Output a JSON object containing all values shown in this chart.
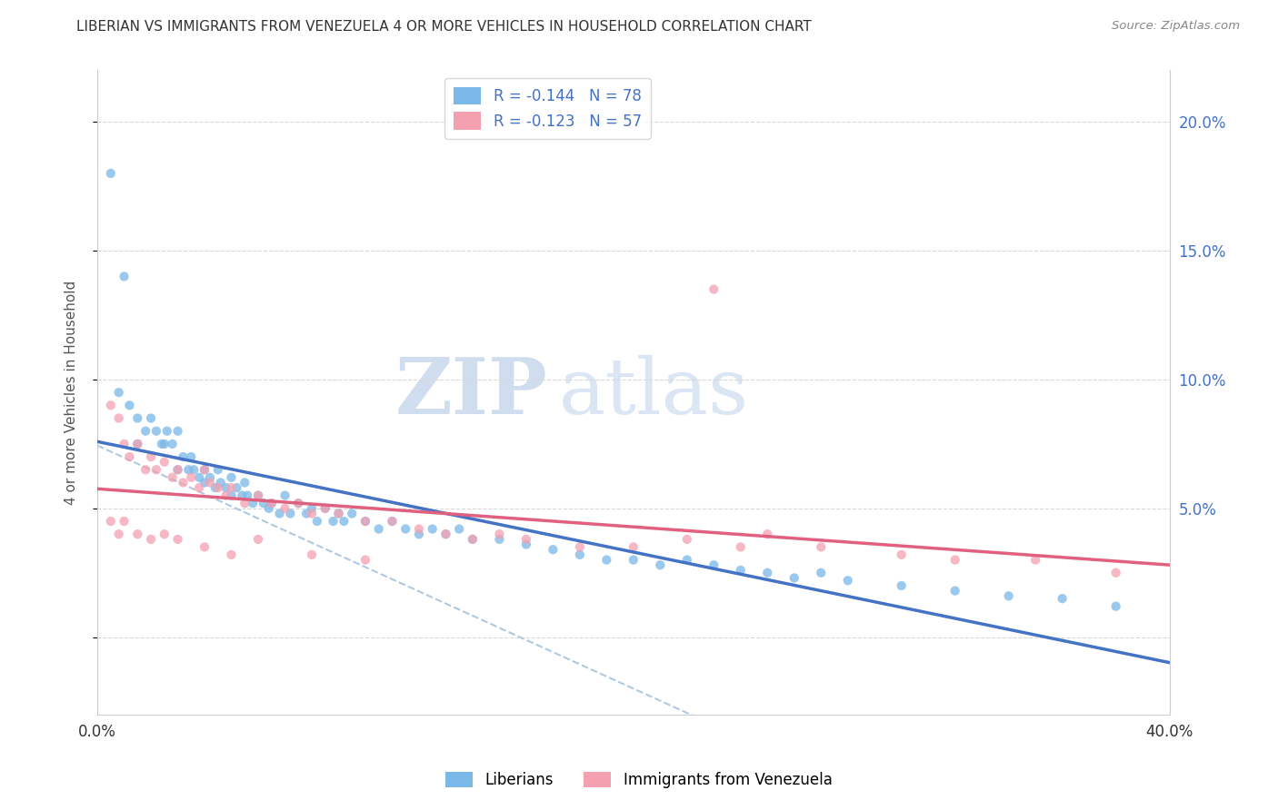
{
  "title": "LIBERIAN VS IMMIGRANTS FROM VENEZUELA 4 OR MORE VEHICLES IN HOUSEHOLD CORRELATION CHART",
  "source": "Source: ZipAtlas.com",
  "ylabel": "4 or more Vehicles in Household",
  "x_min": 0.0,
  "x_max": 0.4,
  "y_min": -0.03,
  "y_max": 0.22,
  "y_ticks_right": [
    0.05,
    0.1,
    0.15,
    0.2
  ],
  "y_tick_labels_right": [
    "5.0%",
    "10.0%",
    "15.0%",
    "20.0%"
  ],
  "legend_entry1": "R = -0.144   N = 78",
  "legend_entry2": "R = -0.123   N = 57",
  "color_blue": "#7ab8e8",
  "color_pink": "#f4a0b0",
  "color_blue_line": "#4472c4",
  "color_pink_line": "#e06080",
  "color_dashed": "#b0c8e0",
  "watermark_zip": "ZIP",
  "watermark_atlas": "atlas",
  "background_color": "#ffffff",
  "grid_color": "#d8d8d8",
  "liberian_x": [
    0.005,
    0.008,
    0.01,
    0.012,
    0.015,
    0.015,
    0.018,
    0.02,
    0.022,
    0.024,
    0.025,
    0.026,
    0.028,
    0.03,
    0.03,
    0.032,
    0.034,
    0.035,
    0.036,
    0.038,
    0.04,
    0.04,
    0.042,
    0.044,
    0.045,
    0.046,
    0.048,
    0.05,
    0.05,
    0.052,
    0.054,
    0.055,
    0.056,
    0.058,
    0.06,
    0.062,
    0.064,
    0.065,
    0.068,
    0.07,
    0.072,
    0.075,
    0.078,
    0.08,
    0.082,
    0.085,
    0.088,
    0.09,
    0.092,
    0.095,
    0.1,
    0.105,
    0.11,
    0.115,
    0.12,
    0.125,
    0.13,
    0.135,
    0.14,
    0.15,
    0.16,
    0.17,
    0.18,
    0.19,
    0.2,
    0.21,
    0.22,
    0.23,
    0.24,
    0.25,
    0.26,
    0.27,
    0.28,
    0.3,
    0.32,
    0.34,
    0.36,
    0.38
  ],
  "liberian_y": [
    0.18,
    0.095,
    0.14,
    0.09,
    0.085,
    0.075,
    0.08,
    0.085,
    0.08,
    0.075,
    0.075,
    0.08,
    0.075,
    0.08,
    0.065,
    0.07,
    0.065,
    0.07,
    0.065,
    0.062,
    0.065,
    0.06,
    0.062,
    0.058,
    0.065,
    0.06,
    0.058,
    0.062,
    0.055,
    0.058,
    0.055,
    0.06,
    0.055,
    0.052,
    0.055,
    0.052,
    0.05,
    0.052,
    0.048,
    0.055,
    0.048,
    0.052,
    0.048,
    0.05,
    0.045,
    0.05,
    0.045,
    0.048,
    0.045,
    0.048,
    0.045,
    0.042,
    0.045,
    0.042,
    0.04,
    0.042,
    0.04,
    0.042,
    0.038,
    0.038,
    0.036,
    0.034,
    0.032,
    0.03,
    0.03,
    0.028,
    0.03,
    0.028,
    0.026,
    0.025,
    0.023,
    0.025,
    0.022,
    0.02,
    0.018,
    0.016,
    0.015,
    0.012
  ],
  "venezuela_x": [
    0.005,
    0.008,
    0.01,
    0.012,
    0.015,
    0.018,
    0.02,
    0.022,
    0.025,
    0.028,
    0.03,
    0.032,
    0.035,
    0.038,
    0.04,
    0.042,
    0.045,
    0.048,
    0.05,
    0.055,
    0.06,
    0.065,
    0.07,
    0.075,
    0.08,
    0.085,
    0.09,
    0.1,
    0.11,
    0.12,
    0.13,
    0.14,
    0.15,
    0.16,
    0.18,
    0.2,
    0.22,
    0.24,
    0.25,
    0.27,
    0.3,
    0.32,
    0.35,
    0.38,
    0.23,
    0.005,
    0.008,
    0.01,
    0.015,
    0.02,
    0.025,
    0.03,
    0.04,
    0.05,
    0.06,
    0.08,
    0.1
  ],
  "venezuela_y": [
    0.09,
    0.085,
    0.075,
    0.07,
    0.075,
    0.065,
    0.07,
    0.065,
    0.068,
    0.062,
    0.065,
    0.06,
    0.062,
    0.058,
    0.065,
    0.06,
    0.058,
    0.055,
    0.058,
    0.052,
    0.055,
    0.052,
    0.05,
    0.052,
    0.048,
    0.05,
    0.048,
    0.045,
    0.045,
    0.042,
    0.04,
    0.038,
    0.04,
    0.038,
    0.035,
    0.035,
    0.038,
    0.035,
    0.04,
    0.035,
    0.032,
    0.03,
    0.03,
    0.025,
    0.135,
    0.045,
    0.04,
    0.045,
    0.04,
    0.038,
    0.04,
    0.038,
    0.035,
    0.032,
    0.038,
    0.032,
    0.03
  ]
}
